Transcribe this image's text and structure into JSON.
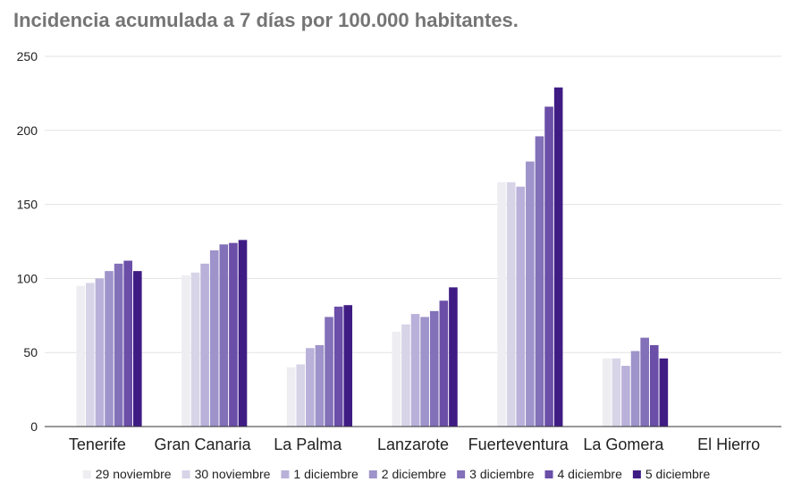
{
  "chart_data": {
    "type": "bar",
    "title": "Incidencia acumulada a 7 días por 100.000 habitantes.",
    "xlabel": "",
    "ylabel": "",
    "ylim": [
      0,
      250
    ],
    "yticks": [
      0,
      50,
      100,
      150,
      200,
      250
    ],
    "grid": true,
    "legend_position": "bottom",
    "categories": [
      "Tenerife",
      "Gran Canaria",
      "La Palma",
      "Lanzarote",
      "Fuerteventura",
      "La Gomera",
      "El Hierro"
    ],
    "series": [
      {
        "name": "29 noviembre",
        "color": "#ededf2",
        "values": [
          95,
          102,
          40,
          64,
          165,
          46,
          0
        ]
      },
      {
        "name": "30 noviembre",
        "color": "#d7d4e8",
        "values": [
          97,
          104,
          42,
          69,
          165,
          46,
          0
        ]
      },
      {
        "name": "1 diciembre",
        "color": "#b9b1d9",
        "values": [
          100,
          110,
          53,
          76,
          162,
          41,
          0
        ]
      },
      {
        "name": "2 diciembre",
        "color": "#9e93ca",
        "values": [
          105,
          119,
          55,
          74,
          179,
          51,
          0
        ]
      },
      {
        "name": "3 diciembre",
        "color": "#8270b8",
        "values": [
          110,
          123,
          74,
          78,
          196,
          60,
          0
        ]
      },
      {
        "name": "4 diciembre",
        "color": "#6a4ea7",
        "values": [
          112,
          124,
          81,
          85,
          216,
          55,
          0
        ]
      },
      {
        "name": "5 diciembre",
        "color": "#3f1c84",
        "values": [
          105,
          126,
          82,
          94,
          229,
          46,
          0
        ]
      }
    ]
  }
}
